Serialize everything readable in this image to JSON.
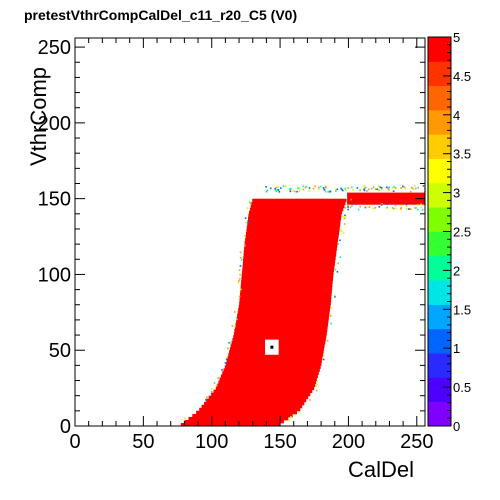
{
  "chart_data": {
    "type": "heatmap",
    "title": "pretestVthrCompCalDel_c11_r20_C5 (V0)",
    "xlabel": "CalDel",
    "ylabel": "VthrComp",
    "xlim": [
      0,
      256
    ],
    "ylim": [
      0,
      256
    ],
    "x_ticks": [
      "0",
      "50",
      "100",
      "150",
      "200",
      "250"
    ],
    "y_ticks": [
      "0",
      "50",
      "100",
      "150",
      "200",
      "250"
    ],
    "z_range": [
      0,
      5
    ],
    "colorbar_ticks": [
      "0",
      "0.5",
      "1",
      "1.5",
      "2",
      "2.5",
      "3",
      "3.5",
      "4",
      "4.5",
      "5"
    ],
    "colorbar_colors": [
      "#8000ff",
      "#4d00ff",
      "#2a2aff",
      "#0066ff",
      "#00a6ff",
      "#00e6e6",
      "#00ff99",
      "#33ff33",
      "#80ff00",
      "#ccff00",
      "#ffff00",
      "#ffcc00",
      "#ff9900",
      "#ff6600",
      "#ff3300",
      "#ff0000"
    ],
    "region": {
      "z_value": 5,
      "left_edge": [
        [
          0,
          76
        ],
        [
          10,
          90
        ],
        [
          25,
          103
        ],
        [
          40,
          110
        ],
        [
          60,
          116
        ],
        [
          80,
          120
        ],
        [
          100,
          122
        ],
        [
          120,
          124
        ],
        [
          140,
          127
        ],
        [
          150,
          130
        ]
      ],
      "right_edge": [
        [
          0,
          148
        ],
        [
          10,
          164
        ],
        [
          25,
          175
        ],
        [
          40,
          180
        ],
        [
          60,
          184
        ],
        [
          80,
          187
        ],
        [
          100,
          189
        ],
        [
          120,
          192
        ],
        [
          140,
          195
        ],
        [
          150,
          199
        ]
      ],
      "plateau": {
        "x_start": 199,
        "x_end": 256,
        "y_low": 146,
        "y_high": 154
      },
      "boundary_fuzz_values": [
        1,
        2,
        3,
        4
      ],
      "marker": {
        "x": 144,
        "y": 52,
        "z": 0
      }
    }
  }
}
